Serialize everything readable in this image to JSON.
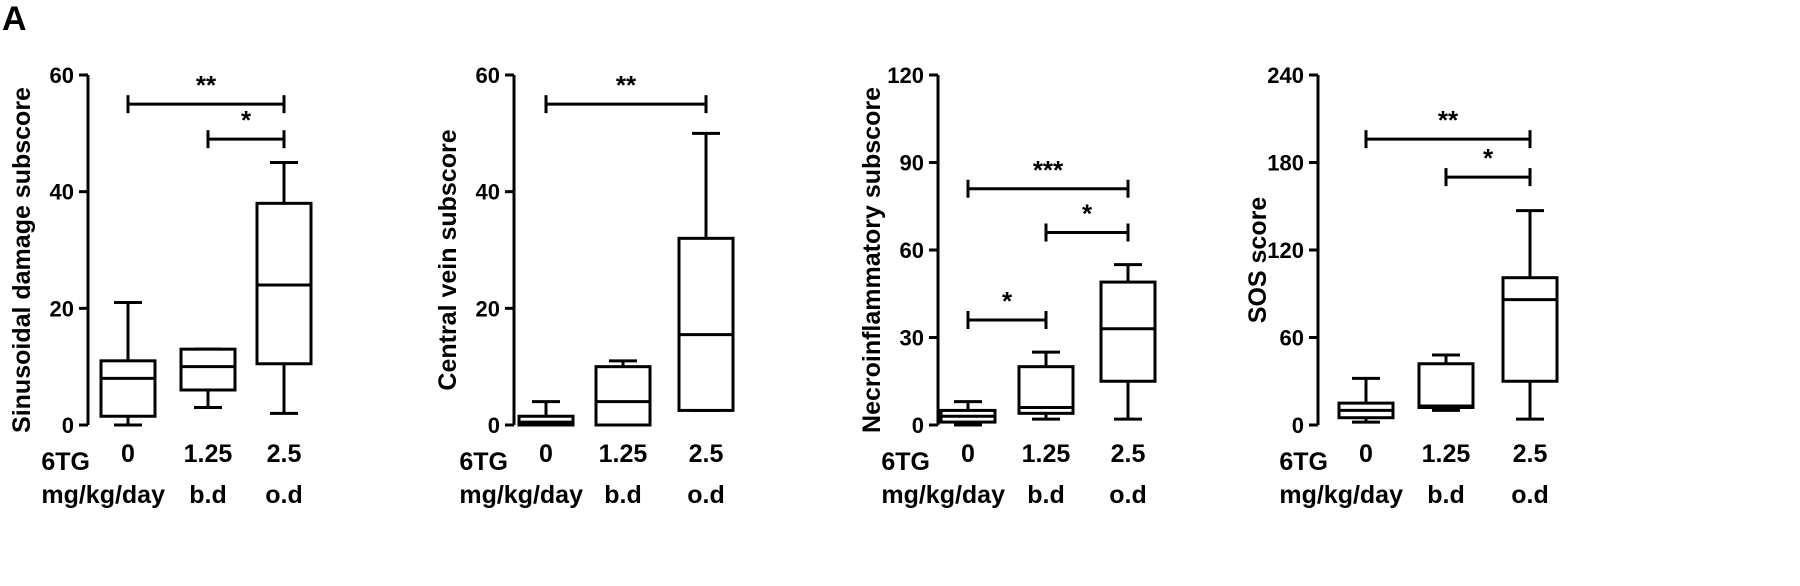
{
  "panel_label": "A",
  "chart_data": [
    {
      "type": "box",
      "ylabel": "Sinusoidal damage subscore",
      "ylim": [
        0,
        60
      ],
      "yticks": [
        "0",
        "20",
        "40",
        "60"
      ],
      "categories": [
        "0",
        "1.25",
        "2.5"
      ],
      "dosing": [
        "",
        "b.d",
        "o.d"
      ],
      "row_labels": [
        "6TG",
        "mg/kg/day"
      ],
      "boxes": [
        {
          "min": 0,
          "q1": 1.5,
          "median": 8,
          "q3": 11,
          "max": 21
        },
        {
          "min": 3,
          "q1": 6,
          "median": 10,
          "q3": 13,
          "max": 13
        },
        {
          "min": 2,
          "q1": 10.5,
          "median": 24,
          "q3": 38,
          "max": 45
        }
      ],
      "significance": [
        {
          "from": 0,
          "to": 2,
          "y": 55,
          "label": "**"
        },
        {
          "from": 1,
          "to": 2,
          "y": 49,
          "label": "*"
        }
      ]
    },
    {
      "type": "box",
      "ylabel": "Central vein subscore",
      "ylim": [
        0,
        60
      ],
      "yticks": [
        "0",
        "20",
        "40",
        "60"
      ],
      "categories": [
        "0",
        "1.25",
        "2.5"
      ],
      "dosing": [
        "",
        "b.d",
        "o.d"
      ],
      "row_labels": [
        "6TG",
        "mg/kg/day"
      ],
      "boxes": [
        {
          "min": 0,
          "q1": 0,
          "median": 0.5,
          "q3": 1.5,
          "max": 4
        },
        {
          "min": 0,
          "q1": 0,
          "median": 4,
          "q3": 10,
          "max": 11
        },
        {
          "min": 2.5,
          "q1": 2.5,
          "median": 15.5,
          "q3": 32,
          "max": 50
        }
      ],
      "significance": [
        {
          "from": 0,
          "to": 2,
          "y": 55,
          "label": "**"
        }
      ]
    },
    {
      "type": "box",
      "ylabel": "Necroinflammatory subscore",
      "ylim": [
        0,
        120
      ],
      "yticks": [
        "0",
        "30",
        "60",
        "90",
        "120"
      ],
      "categories": [
        "0",
        "1.25",
        "2.5"
      ],
      "dosing": [
        "",
        "b.d",
        "o.d"
      ],
      "row_labels": [
        "6TG",
        "mg/kg/day"
      ],
      "boxes": [
        {
          "min": 0,
          "q1": 1,
          "median": 3,
          "q3": 5,
          "max": 8
        },
        {
          "min": 2,
          "q1": 4,
          "median": 6,
          "q3": 20,
          "max": 25
        },
        {
          "min": 2,
          "q1": 15,
          "median": 33,
          "q3": 49,
          "max": 55
        }
      ],
      "significance": [
        {
          "from": 0,
          "to": 2,
          "y": 81,
          "label": "***"
        },
        {
          "from": 1,
          "to": 2,
          "y": 66,
          "label": "*"
        },
        {
          "from": 0,
          "to": 1,
          "y": 36,
          "label": "*"
        }
      ]
    },
    {
      "type": "box",
      "ylabel": "SOS score",
      "ylim": [
        0,
        240
      ],
      "yticks": [
        "0",
        "60",
        "120",
        "180",
        "240"
      ],
      "categories": [
        "0",
        "1.25",
        "2.5"
      ],
      "dosing": [
        "",
        "b.d",
        "o.d"
      ],
      "row_labels": [
        "6TG",
        "mg/kg/day"
      ],
      "boxes": [
        {
          "min": 2,
          "q1": 5,
          "median": 10,
          "q3": 15,
          "max": 32
        },
        {
          "min": 10,
          "q1": 12,
          "median": 13,
          "q3": 42,
          "max": 48
        },
        {
          "min": 4,
          "q1": 30,
          "median": 86,
          "q3": 101,
          "max": 147
        }
      ],
      "significance": [
        {
          "from": 0,
          "to": 2,
          "y": 196,
          "label": "**"
        },
        {
          "from": 1,
          "to": 2,
          "y": 170,
          "label": "*"
        }
      ]
    }
  ]
}
